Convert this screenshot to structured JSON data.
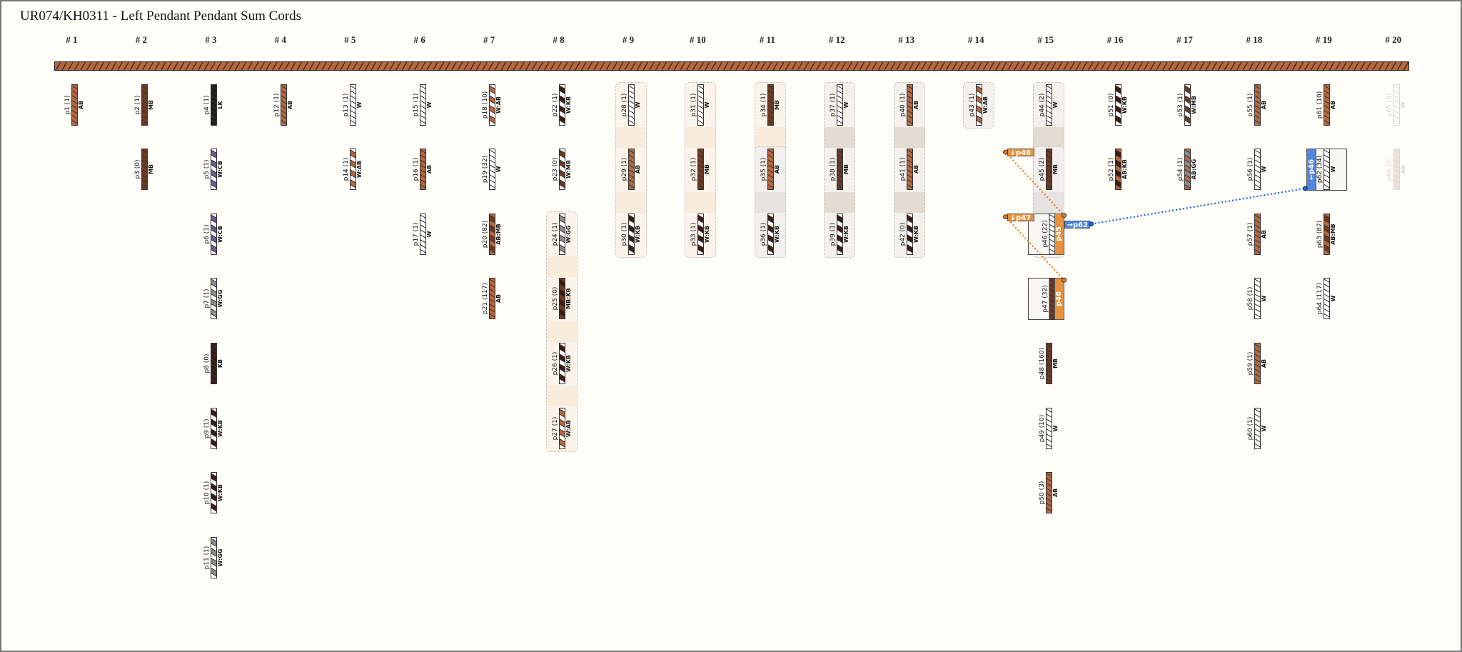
{
  "title": "UR074/KH0311 - Left Pendant Pendant Sum Cords",
  "colors": {
    "AB": "#b5673f",
    "MB": "#6e3b22",
    "LK": "#1e1e1e",
    "KB": "#3b1c12",
    "W": "#ffffff",
    "GG": "#8c8c8c",
    "CB": "#6a5a9a",
    "primary": "#b5673f",
    "sum_orange": "#e8913f",
    "sum_blue": "#4f86e0"
  },
  "columns": [
    {
      "header": "# 1",
      "cords": [
        {
          "row": 0,
          "id": "p1",
          "count": "(1)",
          "color": "AB"
        }
      ]
    },
    {
      "header": "# 2",
      "cords": [
        {
          "row": 0,
          "id": "p2",
          "count": "(1)",
          "color": "MB"
        },
        {
          "row": 1,
          "id": "p3",
          "count": "(0)",
          "color": "MB"
        }
      ]
    },
    {
      "header": "# 3",
      "cords": [
        {
          "row": 0,
          "id": "p4",
          "count": "(1)",
          "color": "LK"
        },
        {
          "row": 1,
          "id": "p5",
          "count": "(1)",
          "color": "W:CB"
        },
        {
          "row": 2,
          "id": "p6",
          "count": "(1)",
          "color": "W:CB"
        },
        {
          "row": 3,
          "id": "p7",
          "count": "(1)",
          "color": "W:GG"
        },
        {
          "row": 4,
          "id": "p8",
          "count": "(0)",
          "color": "KB"
        },
        {
          "row": 5,
          "id": "p9",
          "count": "(1)",
          "color": "W:KB"
        },
        {
          "row": 6,
          "id": "p10",
          "count": "(1)",
          "color": "W:KB"
        },
        {
          "row": 7,
          "id": "p11",
          "count": "(1)",
          "color": "W:GG"
        }
      ]
    },
    {
      "header": "# 4",
      "cords": [
        {
          "row": 0,
          "id": "p12",
          "count": "(1)",
          "color": "AB"
        }
      ]
    },
    {
      "header": "# 5",
      "cords": [
        {
          "row": 0,
          "id": "p13",
          "count": "(1)",
          "color": "W"
        },
        {
          "row": 1,
          "id": "p14",
          "count": "(1)",
          "color": "W:AB"
        }
      ]
    },
    {
      "header": "# 6",
      "cords": [
        {
          "row": 0,
          "id": "p15",
          "count": "(1)",
          "color": "W"
        },
        {
          "row": 1,
          "id": "p16",
          "count": "(1)",
          "color": "AB"
        },
        {
          "row": 2,
          "id": "p17",
          "count": "(1)",
          "color": "W"
        }
      ]
    },
    {
      "header": "# 7",
      "cords": [
        {
          "row": 0,
          "id": "p18",
          "count": "(10)",
          "color": "W:AB"
        },
        {
          "row": 1,
          "id": "p19",
          "count": "(32)",
          "color": "W"
        },
        {
          "row": 2,
          "id": "p20",
          "count": "(82)",
          "color": "AB:MB"
        },
        {
          "row": 3,
          "id": "p21",
          "count": "(117)",
          "color": "AB"
        }
      ]
    },
    {
      "header": "# 8",
      "cords": [
        {
          "row": 0,
          "id": "p22",
          "count": "(1)",
          "color": "W:KB"
        },
        {
          "row": 1,
          "id": "p23",
          "count": "(0)",
          "color": "W:MB"
        },
        {
          "row": 2,
          "id": "p24",
          "count": "(1)",
          "color": "W:GG"
        },
        {
          "row": 3,
          "id": "p25",
          "count": "(0)",
          "color": "MB:KB"
        },
        {
          "row": 4,
          "id": "p26",
          "count": "(1)",
          "color": "W:KB"
        },
        {
          "row": 5,
          "id": "p27",
          "count": "(1)",
          "color": "W:AB"
        }
      ]
    },
    {
      "header": "# 9",
      "cords": [
        {
          "row": 0,
          "id": "p28",
          "count": "(1)",
          "color": "W"
        },
        {
          "row": 1,
          "id": "p29",
          "count": "(1)",
          "color": "AB"
        },
        {
          "row": 2,
          "id": "p30",
          "count": "(1)",
          "color": "W:KB"
        }
      ]
    },
    {
      "header": "# 10",
      "cords": [
        {
          "row": 0,
          "id": "p31",
          "count": "(1)",
          "color": "W"
        },
        {
          "row": 1,
          "id": "p32",
          "count": "(1)",
          "color": "MB"
        },
        {
          "row": 2,
          "id": "p33",
          "count": "(1)",
          "color": "W:KB"
        }
      ]
    },
    {
      "header": "# 11",
      "cords": [
        {
          "row": 0,
          "id": "p34",
          "count": "(1)",
          "color": "MB"
        },
        {
          "row": 1,
          "id": "p35",
          "count": "(1)",
          "color": "AB"
        },
        {
          "row": 2,
          "id": "p36",
          "count": "(1)",
          "color": "W:KB"
        }
      ]
    },
    {
      "header": "# 12",
      "cords": [
        {
          "row": 0,
          "id": "p37",
          "count": "(1)",
          "color": "W"
        },
        {
          "row": 1,
          "id": "p38",
          "count": "(1)",
          "color": "MB"
        },
        {
          "row": 2,
          "id": "p39",
          "count": "(1)",
          "color": "W:KB"
        }
      ]
    },
    {
      "header": "# 13",
      "cords": [
        {
          "row": 0,
          "id": "p40",
          "count": "(1)",
          "color": "AB"
        },
        {
          "row": 1,
          "id": "p41",
          "count": "(1)",
          "color": "AB"
        },
        {
          "row": 2,
          "id": "p42",
          "count": "(0)",
          "color": "W:KB"
        }
      ]
    },
    {
      "header": "# 14",
      "cords": [
        {
          "row": 0,
          "id": "p43",
          "count": "(1)",
          "color": "W:AB"
        }
      ]
    },
    {
      "header": "# 15",
      "cords": [
        {
          "row": 0,
          "id": "p44",
          "count": "(2)",
          "color": "W"
        },
        {
          "row": 1,
          "id": "p45",
          "count": "(2)",
          "color": "MB"
        },
        {
          "row": 2,
          "id": "p46",
          "count": "(22)",
          "color": "W",
          "sum_of": "p45"
        },
        {
          "row": 3,
          "id": "p47",
          "count": "(32)",
          "color": "MB",
          "sum_of": "p46"
        },
        {
          "row": 4,
          "id": "p48",
          "count": "(160)",
          "color": "MB"
        },
        {
          "row": 5,
          "id": "p49",
          "count": "(10)",
          "color": "W"
        },
        {
          "row": 6,
          "id": "p50",
          "count": "(3)",
          "color": "AB"
        }
      ]
    },
    {
      "header": "# 16",
      "cords": [
        {
          "row": 0,
          "id": "p51",
          "count": "(0)",
          "color": "W:KB"
        },
        {
          "row": 1,
          "id": "p52",
          "count": "(1)",
          "color": "AB:KB"
        }
      ]
    },
    {
      "header": "# 17",
      "cords": [
        {
          "row": 0,
          "id": "p53",
          "count": "(1)",
          "color": "W:MB"
        },
        {
          "row": 1,
          "id": "p54",
          "count": "(1)",
          "color": "AB:GG"
        }
      ]
    },
    {
      "header": "# 18",
      "cords": [
        {
          "row": 0,
          "id": "p55",
          "count": "(1)",
          "color": "AB"
        },
        {
          "row": 1,
          "id": "p56",
          "count": "(1)",
          "color": "W"
        },
        {
          "row": 2,
          "id": "p57",
          "count": "(1)",
          "color": "AB"
        },
        {
          "row": 3,
          "id": "p58",
          "count": "(1)",
          "color": "W"
        },
        {
          "row": 4,
          "id": "p59",
          "count": "(1)",
          "color": "AB"
        },
        {
          "row": 5,
          "id": "p60",
          "count": "(1)",
          "color": "W"
        }
      ]
    },
    {
      "header": "# 19",
      "cords": [
        {
          "row": 0,
          "id": "p61",
          "count": "(10)",
          "color": "AB"
        },
        {
          "row": 1,
          "id": "p62",
          "count": "(34)",
          "color": "W",
          "sum_from": "←p46"
        },
        {
          "row": 2,
          "id": "p63",
          "count": "(82)",
          "color": "AB:MB"
        },
        {
          "row": 3,
          "id": "p64",
          "count": "(117)",
          "color": "W"
        }
      ]
    },
    {
      "header": "# 20",
      "ghost": true,
      "cords": [
        {
          "row": 0,
          "id": "p65",
          "count": "(0)",
          "color": "W"
        },
        {
          "row": 1,
          "id": "p66",
          "count": "(0)",
          "color": "AB"
        }
      ]
    }
  ],
  "groups": [
    {
      "col": 7,
      "rows": [
        2,
        5
      ],
      "tone": "peach"
    },
    {
      "col": 8,
      "rows": [
        0,
        2
      ],
      "tone": "peach"
    },
    {
      "col": 9,
      "rows": [
        0,
        2
      ],
      "tone": "peach"
    },
    {
      "col": 10,
      "rows": [
        0,
        1
      ],
      "tone": "peach"
    },
    {
      "col": 10,
      "rows": [
        1,
        2
      ],
      "tone": "grey"
    },
    {
      "col": 11,
      "rows": [
        0,
        2
      ],
      "tone": "beige"
    },
    {
      "col": 12,
      "rows": [
        0,
        2
      ],
      "tone": "beige"
    },
    {
      "col": 13,
      "rows": [
        0,
        0
      ],
      "tone": "beige"
    },
    {
      "col": 14,
      "rows": [
        0,
        1
      ],
      "tone": "beige"
    },
    {
      "col": 14,
      "rows": [
        1,
        2
      ],
      "tone": "grey"
    }
  ],
  "sum_links": [
    {
      "tag": "↓p46",
      "from_col": 15,
      "tag_row": 1,
      "target": "p46",
      "color": "orange"
    },
    {
      "tag": "↓p47",
      "from_col": 15,
      "tag_row": 2,
      "target": "p47",
      "color": "orange"
    },
    {
      "tag": "→p62",
      "color": "blue",
      "target": "p62"
    }
  ]
}
